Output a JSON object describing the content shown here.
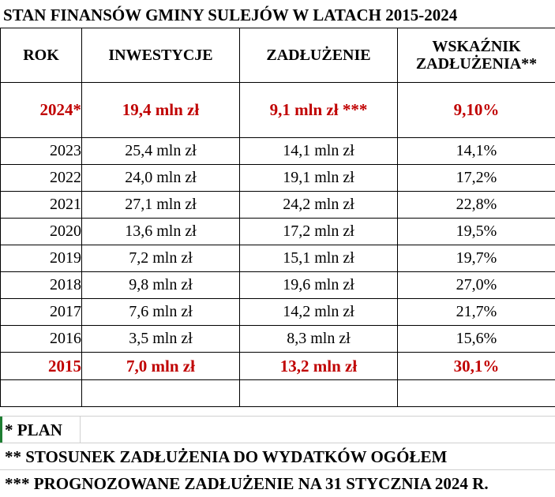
{
  "title": "STAN FINANSÓW GMINY SULEJÓW W LATACH 2015-2024",
  "headers": {
    "year": "ROK",
    "investments": "INWESTYCJE",
    "debt": "ZADŁUŻENIE",
    "ratio_line1": "WSKAŹNIK",
    "ratio_line2": "ZADŁUŻENIA**"
  },
  "plan_row": {
    "year": "2024*",
    "investments": "19,4 mln zł",
    "debt": "9,1 mln zł ***",
    "ratio": "9,10%"
  },
  "rows": [
    {
      "year": "2023",
      "investments": "25,4 mln zł",
      "debt": "14,1 mln zł",
      "ratio": "14,1%"
    },
    {
      "year": "2022",
      "investments": "24,0 mln zł",
      "debt": "19,1 mln zł",
      "ratio": "17,2%"
    },
    {
      "year": "2021",
      "investments": "27,1 mln zł",
      "debt": "24,2 mln zł",
      "ratio": "22,8%"
    },
    {
      "year": "2020",
      "investments": "13,6 mln zł",
      "debt": "17,2 mln zł",
      "ratio": "19,5%"
    },
    {
      "year": "2019",
      "investments": "7,2 mln zł",
      "debt": "15,1 mln zł",
      "ratio": "19,7%"
    },
    {
      "year": "2018",
      "investments": "9,8 mln zł",
      "debt": "19,6 mln zł",
      "ratio": "27,0%"
    },
    {
      "year": "2017",
      "investments": "7,6 mln zł",
      "debt": "14,2 mln zł",
      "ratio": "21,7%"
    },
    {
      "year": "2016",
      "investments": "3,5 mln zł",
      "debt": "8,3 mln zł",
      "ratio": "15,6%"
    }
  ],
  "last_row": {
    "year": "2015",
    "investments": "7,0 mln zł",
    "debt": "13,2 mln zł",
    "ratio": "30,1%"
  },
  "notes": {
    "plan": "* PLAN",
    "ratio": "** STOSUNEK ZADŁUŻENIA DO WYDATKÓW OGÓŁEM",
    "forecast": "*** PROGNOZOWANE ZADŁUŻENIE NA 31 STYCZNIA 2024 R."
  },
  "colors": {
    "highlight": "#c00000",
    "text": "#000000",
    "border": "#000000"
  }
}
